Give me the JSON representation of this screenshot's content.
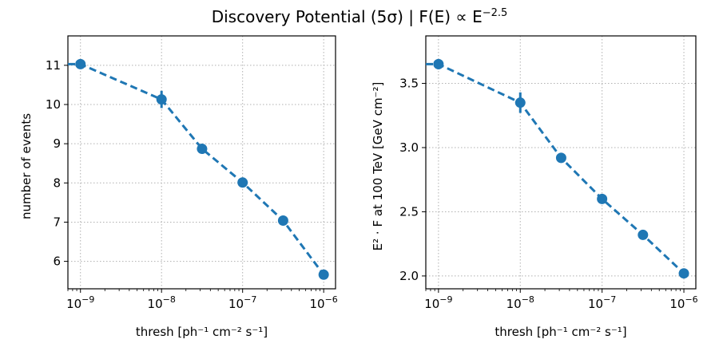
{
  "figure": {
    "title": "Discovery Potential (5σ) | F(E) ∝ E^{−2.5}"
  },
  "chart_data": [
    {
      "type": "line",
      "xscale": "log",
      "xlabel": "thresh    [ph⁻¹ cm⁻² s⁻¹]",
      "ylabel": "number of events",
      "xlim": [
        7e-10,
        1.4e-06
      ],
      "ylim": [
        5.3,
        11.75
      ],
      "xticks": [
        {
          "value": 1e-09,
          "mant": "10",
          "exp": "−9"
        },
        {
          "value": 1e-08,
          "mant": "10",
          "exp": "−8"
        },
        {
          "value": 1e-07,
          "mant": "10",
          "exp": "−7"
        },
        {
          "value": 1e-06,
          "mant": "10",
          "exp": "−6"
        }
      ],
      "yticks": [
        {
          "value": 6,
          "label": "6"
        },
        {
          "value": 7,
          "label": "7"
        },
        {
          "value": 8,
          "label": "8"
        },
        {
          "value": 9,
          "label": "9"
        },
        {
          "value": 10,
          "label": "10"
        },
        {
          "value": 11,
          "label": "11"
        }
      ],
      "grid": true,
      "x": [
        1e-09,
        1e-08,
        3.16e-08,
        1e-07,
        3.16e-07,
        1e-06
      ],
      "y": [
        11.03,
        10.13,
        8.87,
        8.01,
        7.04,
        5.66
      ],
      "yerr": [
        0.12,
        0.22,
        0.07,
        0.07,
        0.06,
        0.05
      ],
      "line_extends_left_to": 7e-10
    },
    {
      "type": "line",
      "xscale": "log",
      "xlabel": "thresh    [ph⁻¹ cm⁻² s⁻¹]",
      "ylabel": "E² · F at 100 TeV   [GeV cm⁻²]",
      "xlim": [
        7e-10,
        1.4e-06
      ],
      "ylim": [
        1.9,
        3.87
      ],
      "xticks": [
        {
          "value": 1e-09,
          "mant": "10",
          "exp": "−9"
        },
        {
          "value": 1e-08,
          "mant": "10",
          "exp": "−8"
        },
        {
          "value": 1e-07,
          "mant": "10",
          "exp": "−7"
        },
        {
          "value": 1e-06,
          "mant": "10",
          "exp": "−6"
        }
      ],
      "yticks": [
        {
          "value": 2.0,
          "label": "2.0"
        },
        {
          "value": 2.5,
          "label": "2.5"
        },
        {
          "value": 3.0,
          "label": "3.0"
        },
        {
          "value": 3.5,
          "label": "3.5"
        }
      ],
      "grid": true,
      "x": [
        1e-09,
        1e-08,
        3.16e-08,
        1e-07,
        3.16e-07,
        1e-06
      ],
      "y": [
        3.65,
        3.35,
        2.92,
        2.6,
        2.32,
        2.02
      ],
      "yerr": [
        0.04,
        0.08,
        0.02,
        0.02,
        0.02,
        0.02
      ],
      "line_extends_left_to": 7e-10
    }
  ]
}
